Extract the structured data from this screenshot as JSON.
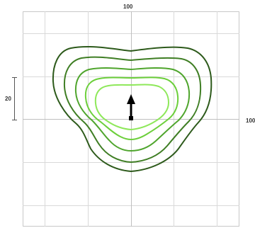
{
  "labels": {
    "top_value": "100",
    "right_value": "100",
    "scale_value": "20"
  },
  "colors": {
    "grid": "#d9d9d9",
    "axis": "#bfbfbf",
    "frame": "#c8c8c8",
    "arrow": "#000000",
    "contours": [
      "#2d5a1b",
      "#3f7e24",
      "#4fa52d",
      "#6ccf3b",
      "#8ee85a"
    ]
  },
  "icons": {
    "direction_arrow": "arrow-up-icon"
  }
}
